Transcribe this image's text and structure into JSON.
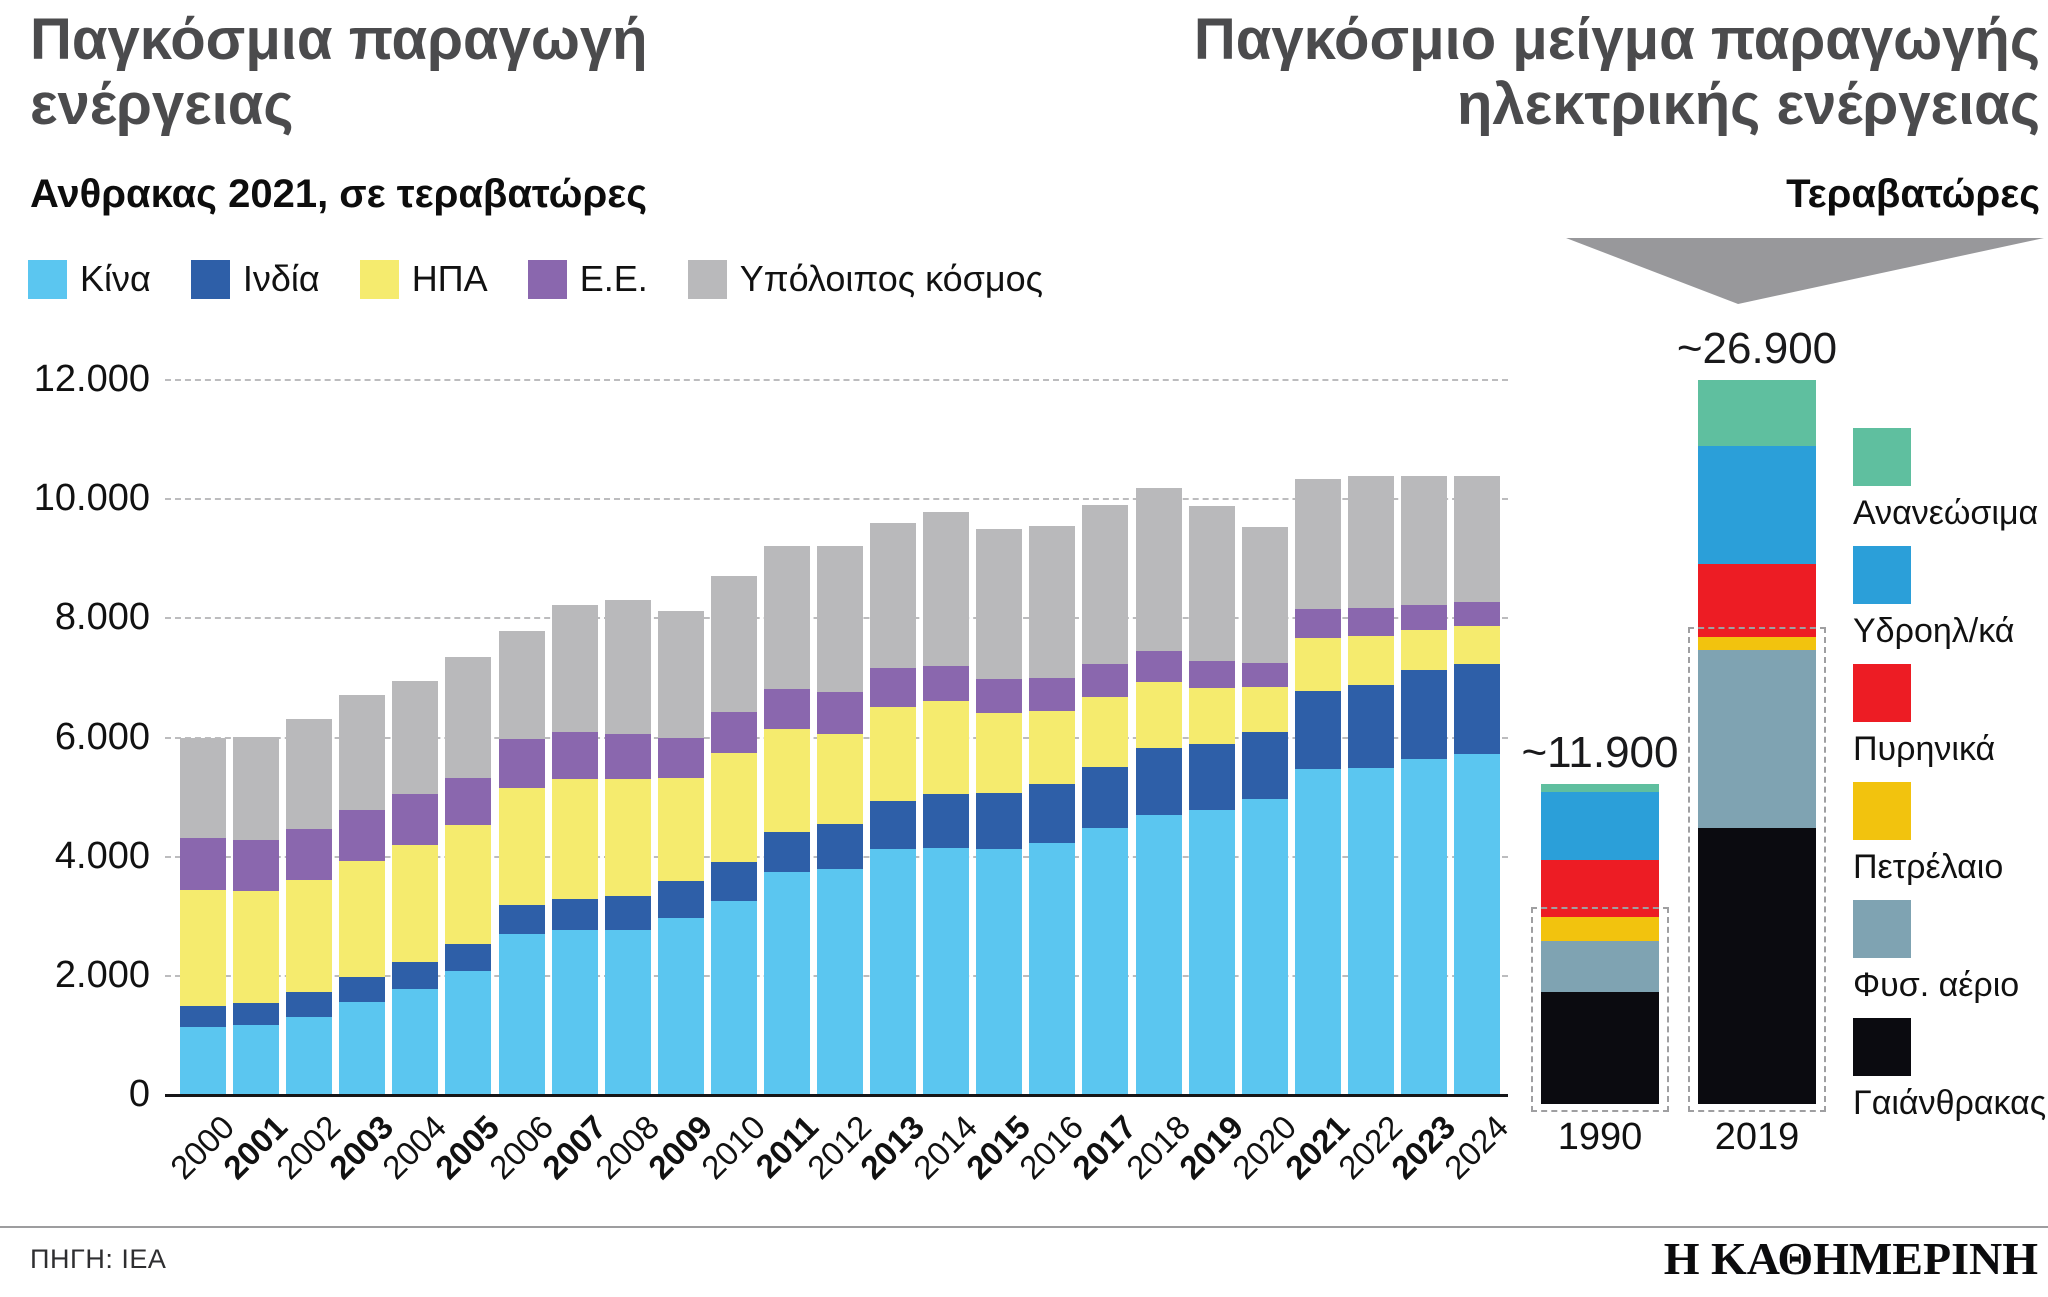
{
  "footer": {
    "source": "ΠΗΓΗ: ΙΕΑ",
    "brand": "Η ΚΑΘΗΜΕΡΙΝΗ"
  },
  "chart_data": [
    {
      "type": "bar",
      "stacked": true,
      "title": "Παγκόσμια παραγωγή ενέργειας",
      "subtitle": "Ανθρακας 2021, σε τεραβατώρες",
      "unit": "τεραβατώρες",
      "grid": "dashed-horizontal",
      "legend_position": "top-left",
      "ylim": [
        0,
        12000
      ],
      "yticks": [
        "12.000",
        "10.000",
        "8.000",
        "6.000",
        "4.000",
        "2.000",
        "0"
      ],
      "categories": [
        "2000",
        "2001",
        "2002",
        "2003",
        "2004",
        "2005",
        "2006",
        "2007",
        "2008",
        "2009",
        "2010",
        "2011",
        "2012",
        "2013",
        "2014",
        "2015",
        "2016",
        "2017",
        "2018",
        "2019",
        "2020",
        "2021",
        "2022",
        "2023",
        "2024"
      ],
      "bold_categories": [
        "2001",
        "2003",
        "2005",
        "2007",
        "2009",
        "2011",
        "2013",
        "2015",
        "2017",
        "2019",
        "2021",
        "2023"
      ],
      "series": [
        {
          "key": "china",
          "name": "Κίνα",
          "color": "#5BC6F0",
          "values": [
            1120,
            1160,
            1290,
            1550,
            1770,
            2060,
            2690,
            2760,
            2760,
            2950,
            3240,
            3720,
            3780,
            4110,
            4130,
            4110,
            4220,
            4460,
            4680,
            4770,
            4950,
            5450,
            5470,
            5620,
            5710
          ]
        },
        {
          "key": "india",
          "name": "Ινδία",
          "color": "#2E5FA8",
          "values": [
            350,
            370,
            420,
            420,
            440,
            460,
            480,
            520,
            570,
            620,
            650,
            680,
            750,
            810,
            900,
            940,
            990,
            1030,
            1120,
            1110,
            1120,
            1310,
            1400,
            1490,
            1510
          ]
        },
        {
          "key": "usa",
          "name": "ΗΠΑ",
          "color": "#F5EB6E",
          "values": [
            1960,
            1880,
            1880,
            1940,
            1970,
            1990,
            1970,
            2010,
            1960,
            1740,
            1840,
            1720,
            1510,
            1580,
            1570,
            1340,
            1220,
            1180,
            1110,
            940,
            760,
            890,
            810,
            680,
            640
          ]
        },
        {
          "key": "eu",
          "name": "Ε.Ε.",
          "color": "#8A67AE",
          "values": [
            860,
            860,
            850,
            860,
            850,
            800,
            810,
            790,
            750,
            660,
            680,
            680,
            700,
            650,
            580,
            570,
            550,
            550,
            520,
            440,
            400,
            490,
            480,
            410,
            390
          ]
        },
        {
          "key": "world",
          "name": "Υπόλοιπος κόσμος",
          "color": "#B9B9BB",
          "values": [
            1680,
            1720,
            1860,
            1930,
            1900,
            2020,
            1820,
            2120,
            2250,
            2130,
            2280,
            2390,
            2450,
            2430,
            2580,
            2530,
            2560,
            2670,
            2740,
            2610,
            2290,
            2190,
            2210,
            2170,
            2120
          ]
        }
      ]
    },
    {
      "type": "bar",
      "stacked": true,
      "title": "Παγκόσμιο μείγμα παραγωγής ηλεκτρικής ενέργειας",
      "subtitle": "Τεραβατώρες",
      "categories": [
        "1990",
        "2019"
      ],
      "totals": [
        11900,
        26900
      ],
      "totals_labels": [
        "~11.900",
        "~26.900"
      ],
      "fossil_highlight": "dashed box around coal + gas + oil segments",
      "series": [
        {
          "key": "coal",
          "name": "Γαιάνθρακας",
          "color": "#0B0B10",
          "values": [
            4150,
            10250
          ]
        },
        {
          "key": "gas",
          "name": "Φυσ. αέριο",
          "color": "#7FA3B2",
          "values": [
            1900,
            6600
          ]
        },
        {
          "key": "oil",
          "name": "Πετρέλαιο",
          "color": "#F2C30E",
          "values": [
            900,
            500
          ]
        },
        {
          "key": "nuclear",
          "name": "Πυρηνικά",
          "color": "#ED1C24",
          "values": [
            2100,
            2700
          ]
        },
        {
          "key": "hydro",
          "name": "Υδροηλ/κά",
          "color": "#2B9FD9",
          "values": [
            2550,
            4400
          ]
        },
        {
          "key": "renewables",
          "name": "Ανανεώσιμα",
          "color": "#5FBF9F",
          "values": [
            300,
            2450
          ]
        }
      ],
      "legend_order_top_to_bottom": [
        "renewables",
        "hydro",
        "nuclear",
        "oil",
        "gas",
        "coal"
      ]
    }
  ]
}
